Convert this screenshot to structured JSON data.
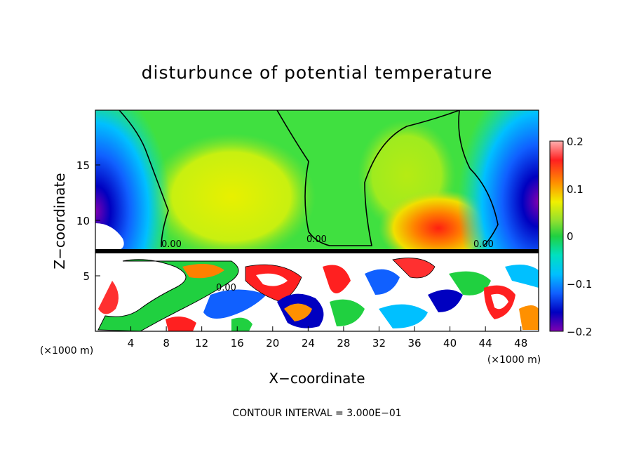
{
  "chart_data": {
    "type": "heatmap",
    "title": "disturbunce of potential temperature",
    "xlabel": "X−coordinate",
    "ylabel": "Z−coordinate",
    "x_unit_left": "(×1000 m)",
    "x_unit_right": "(×1000 m)",
    "xlim": [
      0,
      50
    ],
    "ylim": [
      0,
      20
    ],
    "x_ticks": [
      "4",
      "8",
      "12",
      "16",
      "20",
      "24",
      "28",
      "32",
      "36",
      "40",
      "44",
      "48"
    ],
    "y_ticks": [
      "5",
      "10",
      "15"
    ],
    "colorbar": {
      "range": [
        -0.2,
        0.2
      ],
      "tick_labels": [
        "0.2",
        "0.1",
        "0",
        "−0.1",
        "−0.2"
      ]
    },
    "contour_labels": [
      "0.00",
      "0.00",
      "0.00",
      "0.00"
    ],
    "footer": "CONTOUR INTERVAL = 3.000E−01",
    "upper_layer_mean_values": [
      {
        "x": 2,
        "z": 14,
        "value": -0.2
      },
      {
        "x": 9,
        "z": 14,
        "value": 0.02
      },
      {
        "x": 16,
        "z": 12,
        "value": 0.07
      },
      {
        "x": 22,
        "z": 12,
        "value": 0.02
      },
      {
        "x": 28,
        "z": 12,
        "value": 0.0
      },
      {
        "x": 34,
        "z": 12,
        "value": 0.04
      },
      {
        "x": 39,
        "z": 9,
        "value": 0.15
      },
      {
        "x": 44,
        "z": 14,
        "value": -0.06
      },
      {
        "x": 49,
        "z": 13,
        "value": -0.2
      }
    ]
  }
}
